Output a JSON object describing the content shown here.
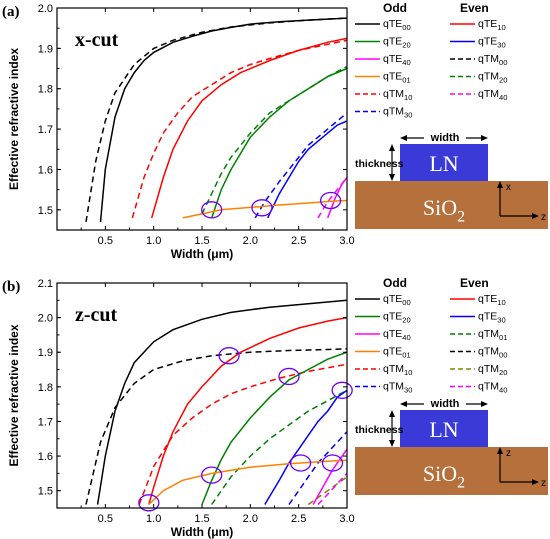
{
  "chart_data": [
    {
      "type": "line",
      "panel_label": "(a)",
      "title": "x-cut",
      "xlabel": "Width (μm)",
      "ylabel": "Effective refractive index",
      "xlim": [
        0,
        3
      ],
      "ylim": [
        1.45,
        2.0
      ],
      "xticks": [
        "0.5",
        "1.0",
        "1.5",
        "2.0",
        "2.5",
        "3.0"
      ],
      "xtick_values": [
        0.5,
        1.0,
        1.5,
        2.0,
        2.5,
        3.0
      ],
      "yticks": [
        "1.5",
        "1.6",
        "1.7",
        "1.8",
        "1.9",
        "2.0"
      ],
      "ytick_values": [
        1.5,
        1.6,
        1.7,
        1.8,
        1.9,
        2.0
      ],
      "grid": false,
      "legend_headers": [
        "Odd",
        "Even"
      ],
      "legend": [
        {
          "base": "qTE",
          "sub": "00",
          "color": "#000000",
          "dash": false
        },
        {
          "base": "qTE",
          "sub": "10",
          "color": "#ff0000",
          "dash": false
        },
        {
          "base": "qTE",
          "sub": "20",
          "color": "#008000",
          "dash": false
        },
        {
          "base": "qTE",
          "sub": "30",
          "color": "#0000ff",
          "dash": false
        },
        {
          "base": "qTE",
          "sub": "40",
          "color": "#ff00ff",
          "dash": false
        },
        {
          "base": "qTM",
          "sub": "00",
          "color": "#000000",
          "dash": true
        },
        {
          "base": "qTE",
          "sub": "01",
          "color": "#ff8000",
          "dash": false
        },
        {
          "base": "qTM",
          "sub": "20",
          "color": "#008000",
          "dash": true
        },
        {
          "base": "qTM",
          "sub": "10",
          "color": "#ff0000",
          "dash": true
        },
        {
          "base": "qTM",
          "sub": "40",
          "color": "#ff00ff",
          "dash": true
        },
        {
          "base": "qTM",
          "sub": "30",
          "color": "#0000ff",
          "dash": true
        }
      ],
      "series": [
        {
          "name": "qTE00",
          "color": "#000000",
          "dash": false,
          "x": [
            0.45,
            0.5,
            0.6,
            0.7,
            0.8,
            0.9,
            1.0,
            1.2,
            1.4,
            1.6,
            1.8,
            2.0,
            2.3,
            2.6,
            3.0
          ],
          "y": [
            1.47,
            1.6,
            1.73,
            1.8,
            1.84,
            1.87,
            1.89,
            1.915,
            1.93,
            1.943,
            1.952,
            1.96,
            1.966,
            1.97,
            1.975
          ]
        },
        {
          "name": "qTM00",
          "color": "#000000",
          "dash": true,
          "x": [
            0.3,
            0.4,
            0.5,
            0.6,
            0.8,
            1.0,
            1.2,
            1.5,
            1.8,
            2.2,
            2.6,
            3.0
          ],
          "y": [
            1.47,
            1.62,
            1.72,
            1.79,
            1.86,
            1.9,
            1.92,
            1.94,
            1.953,
            1.963,
            1.97,
            1.975
          ]
        },
        {
          "name": "qTE10",
          "color": "#ff0000",
          "dash": false,
          "x": [
            0.98,
            1.1,
            1.2,
            1.35,
            1.5,
            1.7,
            1.9,
            2.2,
            2.5,
            2.8,
            3.0
          ],
          "y": [
            1.48,
            1.58,
            1.65,
            1.72,
            1.77,
            1.81,
            1.84,
            1.87,
            1.895,
            1.915,
            1.925
          ]
        },
        {
          "name": "qTM10",
          "color": "#ff0000",
          "dash": true,
          "x": [
            0.78,
            0.9,
            1.0,
            1.1,
            1.25,
            1.4,
            1.6,
            1.8,
            2.0,
            2.2,
            2.5,
            2.8,
            3.0
          ],
          "y": [
            1.48,
            1.58,
            1.64,
            1.69,
            1.74,
            1.78,
            1.81,
            1.84,
            1.86,
            1.875,
            1.895,
            1.91,
            1.92
          ]
        },
        {
          "name": "qTE20",
          "color": "#008000",
          "dash": false,
          "x": [
            1.6,
            1.7,
            1.8,
            1.9,
            2.0,
            2.2,
            2.4,
            2.6,
            2.8,
            3.0
          ],
          "y": [
            1.48,
            1.55,
            1.6,
            1.64,
            1.68,
            1.73,
            1.77,
            1.8,
            1.83,
            1.85
          ]
        },
        {
          "name": "qTM20",
          "color": "#008000",
          "dash": true,
          "x": [
            1.5,
            1.6,
            1.7,
            1.8,
            1.9,
            2.0,
            2.2,
            2.4,
            2.6,
            2.8,
            3.0
          ],
          "y": [
            1.49,
            1.54,
            1.59,
            1.63,
            1.66,
            1.69,
            1.74,
            1.77,
            1.8,
            1.83,
            1.855
          ]
        },
        {
          "name": "qTE30",
          "color": "#0000ff",
          "dash": false,
          "x": [
            2.18,
            2.3,
            2.4,
            2.5,
            2.6,
            2.7,
            2.8,
            2.9,
            3.0
          ],
          "y": [
            1.48,
            1.54,
            1.58,
            1.62,
            1.65,
            1.67,
            1.69,
            1.71,
            1.72
          ]
        },
        {
          "name": "qTM30",
          "color": "#0000ff",
          "dash": true,
          "x": [
            2.05,
            2.15,
            2.3,
            2.4,
            2.5,
            2.6,
            2.7,
            2.8,
            2.9,
            3.0
          ],
          "y": [
            1.48,
            1.52,
            1.57,
            1.6,
            1.63,
            1.66,
            1.68,
            1.7,
            1.72,
            1.74
          ]
        },
        {
          "name": "qTE40",
          "color": "#ff00ff",
          "dash": false,
          "x": [
            2.8,
            2.88,
            2.95,
            3.0
          ],
          "y": [
            1.48,
            1.53,
            1.565,
            1.58
          ]
        },
        {
          "name": "qTM40",
          "color": "#ff00ff",
          "dash": true,
          "x": [
            2.7,
            2.8,
            2.9,
            3.0
          ],
          "y": [
            1.48,
            1.52,
            1.55,
            1.58
          ]
        },
        {
          "name": "qTE01",
          "color": "#ff8000",
          "dash": false,
          "x": [
            1.3,
            1.5,
            1.7,
            2.0,
            2.3,
            2.6,
            2.9,
            3.0
          ],
          "y": [
            1.48,
            1.49,
            1.5,
            1.506,
            1.512,
            1.517,
            1.522,
            1.523
          ]
        }
      ],
      "highlights": [
        {
          "x": 1.6,
          "y": 1.5
        },
        {
          "x": 2.12,
          "y": 1.505
        },
        {
          "x": 2.83,
          "y": 1.523
        }
      ],
      "inset": {
        "width_label": "width",
        "thickness_label": "thickness",
        "core_label": "LN",
        "substrate_base": "SiO",
        "substrate_sub": "2",
        "x_axis": "x",
        "z_axis": "z",
        "vertical_axis_text": "x"
      }
    },
    {
      "type": "line",
      "panel_label": "(b)",
      "title": "z-cut",
      "xlabel": "Width (μm)",
      "ylabel": "Effective refractive index",
      "xlim": [
        0,
        3
      ],
      "ylim": [
        1.45,
        2.1
      ],
      "xticks": [
        "0.5",
        "1.0",
        "1.5",
        "2.0",
        "2.5",
        "3.0"
      ],
      "xtick_values": [
        0.5,
        1.0,
        1.5,
        2.0,
        2.5,
        3.0
      ],
      "yticks": [
        "1.5",
        "1.6",
        "1.7",
        "1.8",
        "1.9",
        "2.0",
        "2.1"
      ],
      "ytick_values": [
        1.5,
        1.6,
        1.7,
        1.8,
        1.9,
        2.0,
        2.1
      ],
      "grid": false,
      "legend_headers": [
        "Odd",
        "Even"
      ],
      "legend": [
        {
          "base": "qTE",
          "sub": "00",
          "color": "#000000",
          "dash": false
        },
        {
          "base": "qTE",
          "sub": "10",
          "color": "#ff0000",
          "dash": false
        },
        {
          "base": "qTE",
          "sub": "20",
          "color": "#008000",
          "dash": false
        },
        {
          "base": "qTE",
          "sub": "30",
          "color": "#0000ff",
          "dash": false
        },
        {
          "base": "qTE",
          "sub": "40",
          "color": "#ff00ff",
          "dash": false
        },
        {
          "base": "qTM",
          "sub": "01",
          "color": "#008000",
          "dash": true
        },
        {
          "base": "qTE",
          "sub": "01",
          "color": "#ff8000",
          "dash": false
        },
        {
          "base": "qTM",
          "sub": "00",
          "color": "#000000",
          "dash": true
        },
        {
          "base": "qTM",
          "sub": "10",
          "color": "#ff0000",
          "dash": true
        },
        {
          "base": "qTM",
          "sub": "20",
          "color": "#808000",
          "dash": true
        },
        {
          "base": "qTM",
          "sub": "30",
          "color": "#0000ff",
          "dash": true
        },
        {
          "base": "qTM",
          "sub": "40",
          "color": "#ff00ff",
          "dash": true
        }
      ],
      "series": [
        {
          "name": "qTE00",
          "color": "#000000",
          "dash": false,
          "x": [
            0.42,
            0.5,
            0.6,
            0.7,
            0.8,
            1.0,
            1.2,
            1.5,
            1.8,
            2.2,
            2.6,
            3.0
          ],
          "y": [
            1.46,
            1.6,
            1.73,
            1.81,
            1.87,
            1.93,
            1.965,
            1.995,
            2.015,
            2.03,
            2.04,
            2.05
          ]
        },
        {
          "name": "qTM00",
          "color": "#000000",
          "dash": true,
          "x": [
            0.3,
            0.45,
            0.6,
            0.8,
            1.0,
            1.3,
            1.6,
            2.0,
            2.4,
            2.8,
            3.0
          ],
          "y": [
            1.46,
            1.64,
            1.74,
            1.81,
            1.85,
            1.875,
            1.89,
            1.9,
            1.905,
            1.908,
            1.91
          ]
        },
        {
          "name": "qTE10",
          "color": "#ff0000",
          "dash": false,
          "x": [
            0.95,
            1.0,
            1.1,
            1.2,
            1.35,
            1.5,
            1.7,
            1.9,
            2.2,
            2.5,
            2.8,
            3.0
          ],
          "y": [
            1.46,
            1.51,
            1.6,
            1.67,
            1.75,
            1.8,
            1.86,
            1.9,
            1.94,
            1.97,
            1.99,
            2.0
          ]
        },
        {
          "name": "qTM10",
          "color": "#ff0000",
          "dash": true,
          "x": [
            0.85,
            1.0,
            1.2,
            1.4,
            1.6,
            1.8,
            2.0,
            2.3,
            2.6,
            3.0
          ],
          "y": [
            1.46,
            1.57,
            1.66,
            1.71,
            1.75,
            1.78,
            1.8,
            1.825,
            1.845,
            1.865
          ]
        },
        {
          "name": "qTE20",
          "color": "#008000",
          "dash": false,
          "x": [
            1.5,
            1.6,
            1.7,
            1.8,
            2.0,
            2.2,
            2.4,
            2.6,
            2.8,
            3.0
          ],
          "y": [
            1.46,
            1.53,
            1.59,
            1.64,
            1.71,
            1.77,
            1.82,
            1.85,
            1.88,
            1.9
          ]
        },
        {
          "name": "qTM01",
          "color": "#008000",
          "dash": true,
          "x": [
            1.6,
            1.8,
            2.0,
            2.2,
            2.4,
            2.6,
            2.8,
            3.0
          ],
          "y": [
            1.46,
            1.54,
            1.6,
            1.65,
            1.69,
            1.73,
            1.76,
            1.79
          ]
        },
        {
          "name": "qTE30",
          "color": "#0000ff",
          "dash": false,
          "x": [
            2.15,
            2.3,
            2.4,
            2.5,
            2.6,
            2.7,
            2.8,
            2.9,
            3.0
          ],
          "y": [
            1.46,
            1.53,
            1.58,
            1.62,
            1.66,
            1.7,
            1.73,
            1.77,
            1.79
          ]
        },
        {
          "name": "qTM30",
          "color": "#0000ff",
          "dash": true,
          "x": [
            2.4,
            2.5,
            2.6,
            2.7,
            2.8,
            2.9,
            3.0
          ],
          "y": [
            1.46,
            1.5,
            1.54,
            1.58,
            1.61,
            1.64,
            1.67
          ]
        },
        {
          "name": "qTM20",
          "color": "#808000",
          "dash": true,
          "x": [
            2.6,
            2.7,
            2.8,
            2.9,
            3.0
          ],
          "y": [
            1.46,
            1.48,
            1.5,
            1.52,
            1.54
          ]
        },
        {
          "name": "qTE40",
          "color": "#ff00ff",
          "dash": false,
          "x": [
            2.65,
            2.75,
            2.85,
            2.95,
            3.0
          ],
          "y": [
            1.46,
            1.51,
            1.56,
            1.6,
            1.62
          ]
        },
        {
          "name": "qTM40",
          "color": "#ff00ff",
          "dash": true,
          "x": [
            2.7,
            2.8,
            2.9,
            3.0
          ],
          "y": [
            1.46,
            1.49,
            1.52,
            1.55
          ]
        },
        {
          "name": "qTE01",
          "color": "#ff8000",
          "dash": false,
          "x": [
            0.95,
            1.1,
            1.3,
            1.6,
            2.0,
            2.4,
            2.8,
            3.0
          ],
          "y": [
            1.46,
            1.5,
            1.53,
            1.55,
            1.568,
            1.578,
            1.585,
            1.588
          ]
        }
      ],
      "highlights": [
        {
          "x": 1.78,
          "y": 1.89
        },
        {
          "x": 2.4,
          "y": 1.83
        },
        {
          "x": 2.95,
          "y": 1.79
        },
        {
          "x": 1.6,
          "y": 1.545
        },
        {
          "x": 2.52,
          "y": 1.58
        },
        {
          "x": 2.85,
          "y": 1.58
        },
        {
          "x": 0.95,
          "y": 1.465
        }
      ],
      "inset": {
        "width_label": "width",
        "thickness_label": "thickness",
        "core_label": "LN",
        "substrate_base": "SiO",
        "substrate_sub": "2",
        "x_axis": "x",
        "z_axis": "z",
        "vertical_axis_text": "z"
      }
    }
  ]
}
